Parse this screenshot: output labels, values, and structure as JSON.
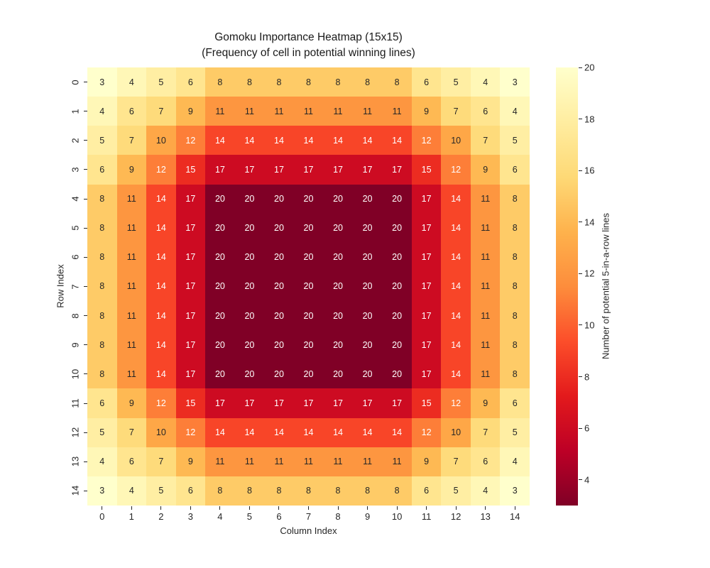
{
  "figure": {
    "background": "#ffffff"
  },
  "chart_data": {
    "type": "heatmap",
    "title_lines": {
      "0": "Gomoku Importance Heatmap (15x15)",
      "1": "(Frequency of cell in potential winning lines)"
    },
    "xlabel": "Column Index",
    "ylabel": "Row Index",
    "x_ticklabels": [
      "0",
      "1",
      "2",
      "3",
      "4",
      "5",
      "6",
      "7",
      "8",
      "9",
      "10",
      "11",
      "12",
      "13",
      "14"
    ],
    "y_ticklabels": [
      "0",
      "1",
      "2",
      "3",
      "4",
      "5",
      "6",
      "7",
      "8",
      "9",
      "10",
      "11",
      "12",
      "13",
      "14"
    ],
    "values": [
      [
        3,
        4,
        5,
        6,
        8,
        8,
        8,
        8,
        8,
        8,
        8,
        6,
        5,
        4,
        3
      ],
      [
        4,
        6,
        7,
        9,
        11,
        11,
        11,
        11,
        11,
        11,
        11,
        9,
        7,
        6,
        4
      ],
      [
        5,
        7,
        10,
        12,
        14,
        14,
        14,
        14,
        14,
        14,
        14,
        12,
        10,
        7,
        5
      ],
      [
        6,
        9,
        12,
        15,
        17,
        17,
        17,
        17,
        17,
        17,
        17,
        15,
        12,
        9,
        6
      ],
      [
        8,
        11,
        14,
        17,
        20,
        20,
        20,
        20,
        20,
        20,
        20,
        17,
        14,
        11,
        8
      ],
      [
        8,
        11,
        14,
        17,
        20,
        20,
        20,
        20,
        20,
        20,
        20,
        17,
        14,
        11,
        8
      ],
      [
        8,
        11,
        14,
        17,
        20,
        20,
        20,
        20,
        20,
        20,
        20,
        17,
        14,
        11,
        8
      ],
      [
        8,
        11,
        14,
        17,
        20,
        20,
        20,
        20,
        20,
        20,
        20,
        17,
        14,
        11,
        8
      ],
      [
        8,
        11,
        14,
        17,
        20,
        20,
        20,
        20,
        20,
        20,
        20,
        17,
        14,
        11,
        8
      ],
      [
        8,
        11,
        14,
        17,
        20,
        20,
        20,
        20,
        20,
        20,
        20,
        17,
        14,
        11,
        8
      ],
      [
        8,
        11,
        14,
        17,
        20,
        20,
        20,
        20,
        20,
        20,
        20,
        17,
        14,
        11,
        8
      ],
      [
        6,
        9,
        12,
        15,
        17,
        17,
        17,
        17,
        17,
        17,
        17,
        15,
        12,
        9,
        6
      ],
      [
        5,
        7,
        10,
        12,
        14,
        14,
        14,
        14,
        14,
        14,
        14,
        12,
        10,
        7,
        5
      ],
      [
        4,
        6,
        7,
        9,
        11,
        11,
        11,
        11,
        11,
        11,
        11,
        9,
        7,
        6,
        4
      ],
      [
        3,
        4,
        5,
        6,
        8,
        8,
        8,
        8,
        8,
        8,
        8,
        6,
        5,
        4,
        3
      ]
    ],
    "vmin": 3,
    "vmax": 20,
    "colormap": {
      "name": "YlOrRd",
      "anchors": [
        "#ffffcc",
        "#ffeda0",
        "#fed976",
        "#feb24c",
        "#fd8d3c",
        "#fc4e2a",
        "#e31a1c",
        "#bd0026",
        "#800026"
      ]
    },
    "annot": true,
    "annot_colors": {
      "light": "#ffffff",
      "dark": "#262626"
    },
    "colorbar": {
      "label": "Number of potential 5-in-a-row lines",
      "ticks": [
        4,
        6,
        8,
        10,
        12,
        14,
        16,
        18,
        20
      ]
    },
    "grid": false,
    "legend_position": "right-colorbar"
  }
}
